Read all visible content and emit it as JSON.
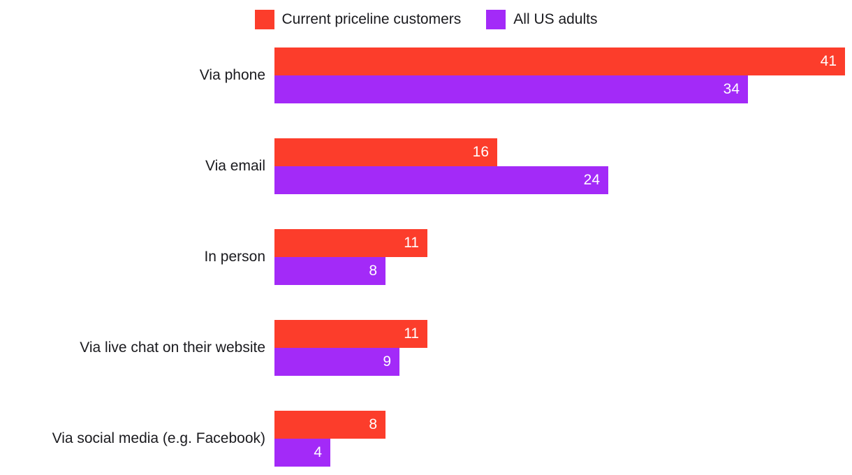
{
  "chart_data": {
    "type": "bar",
    "orientation": "horizontal",
    "title": "",
    "xlabel": "",
    "ylabel": "",
    "xlim": [
      0,
      41
    ],
    "grid": false,
    "legend_position": "top-center",
    "value_labels": "inside-end-white",
    "background_color": "#ffffff",
    "text_color": "#1a1a1e",
    "categories": [
      "Via phone",
      "Via email",
      "In person",
      "Via live chat on their website",
      "Via social media (e.g. Facebook)"
    ],
    "series": [
      {
        "name": "Current priceline customers",
        "color": "#fc3d2b",
        "values": [
          41,
          16,
          11,
          11,
          8
        ]
      },
      {
        "name": "All US adults",
        "color": "#a32af8",
        "values": [
          34,
          24,
          8,
          9,
          4
        ]
      }
    ]
  }
}
